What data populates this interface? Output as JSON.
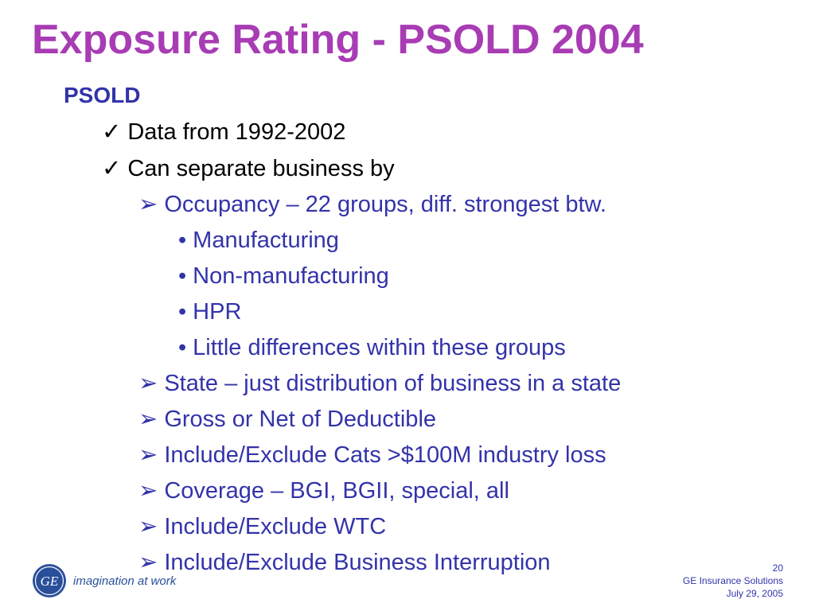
{
  "slide": {
    "title": "Exposure Rating - PSOLD 2004",
    "section": "PSOLD",
    "items": [
      {
        "bullet": "✓",
        "text": "Data from 1992-2002"
      },
      {
        "bullet": "✓",
        "text": "Can separate business by"
      },
      {
        "bullet": "➢",
        "text": "Occupancy –  22 groups, diff. strongest btw."
      },
      {
        "bullet": "•",
        "text": "Manufacturing"
      },
      {
        "bullet": "•",
        "text": "Non-manufacturing"
      },
      {
        "bullet": "•",
        "text": "HPR"
      },
      {
        "bullet": "•",
        "text": "Little differences within these groups"
      },
      {
        "bullet": "➢",
        "text": "State – just distribution of business in a state"
      },
      {
        "bullet": "➢",
        "text": "Gross or Net of Deductible"
      },
      {
        "bullet": "➢",
        "text": "Include/Exclude Cats >$100M industry loss"
      },
      {
        "bullet": "➢",
        "text": "Coverage – BGI, BGII, special, all"
      },
      {
        "bullet": "➢",
        "text": "Include/Exclude WTC"
      },
      {
        "bullet": "➢",
        "text": "Include/Exclude Business Interruption"
      }
    ]
  },
  "footer": {
    "logo_text": "GE",
    "tagline": "imagination at work",
    "page_number": "20",
    "company": "GE Insurance Solutions",
    "date": "July 29, 2005"
  },
  "colors": {
    "title": "#a83cb4",
    "body_blue": "#3333aa",
    "logo_blue": "#2a4f9a"
  },
  "icons": {
    "logo": "ge-monogram-icon"
  }
}
